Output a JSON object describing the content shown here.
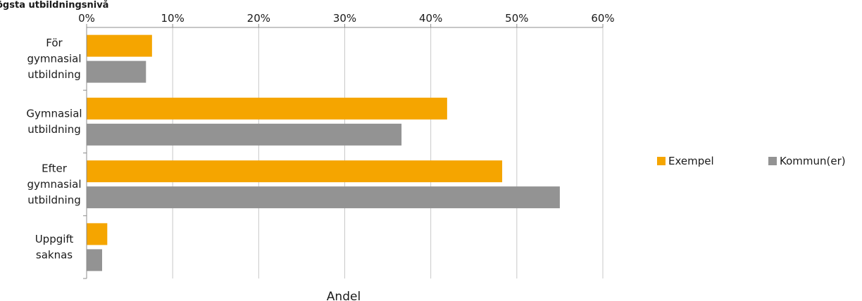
{
  "chart_data": {
    "type": "bar",
    "orientation": "horizontal",
    "title": "ögsta utbildningsnivå",
    "xlabel": "Andel",
    "ylabel": "",
    "xlim": [
      0,
      60
    ],
    "x_tick_values": [
      0,
      10,
      20,
      30,
      40,
      50,
      60
    ],
    "x_tick_labels": [
      "0%",
      "10%",
      "20%",
      "30%",
      "40%",
      "50%",
      "60%"
    ],
    "x_axis_position": "top",
    "grid": true,
    "legend_position": "right",
    "categories": [
      [
        "För",
        "gymnasial",
        "utbildning"
      ],
      [
        "Gymnasial",
        "utbildning"
      ],
      [
        "Efter",
        "gymnasial",
        "utbildning"
      ],
      [
        "Uppgift",
        "saknas"
      ]
    ],
    "series": [
      {
        "name": "Exempel",
        "color": "#f5a500",
        "values": [
          7.6,
          41.9,
          48.3,
          2.4
        ]
      },
      {
        "name": "Kommun(er)",
        "color": "#939393",
        "values": [
          6.9,
          36.6,
          55.0,
          1.8
        ]
      }
    ]
  }
}
